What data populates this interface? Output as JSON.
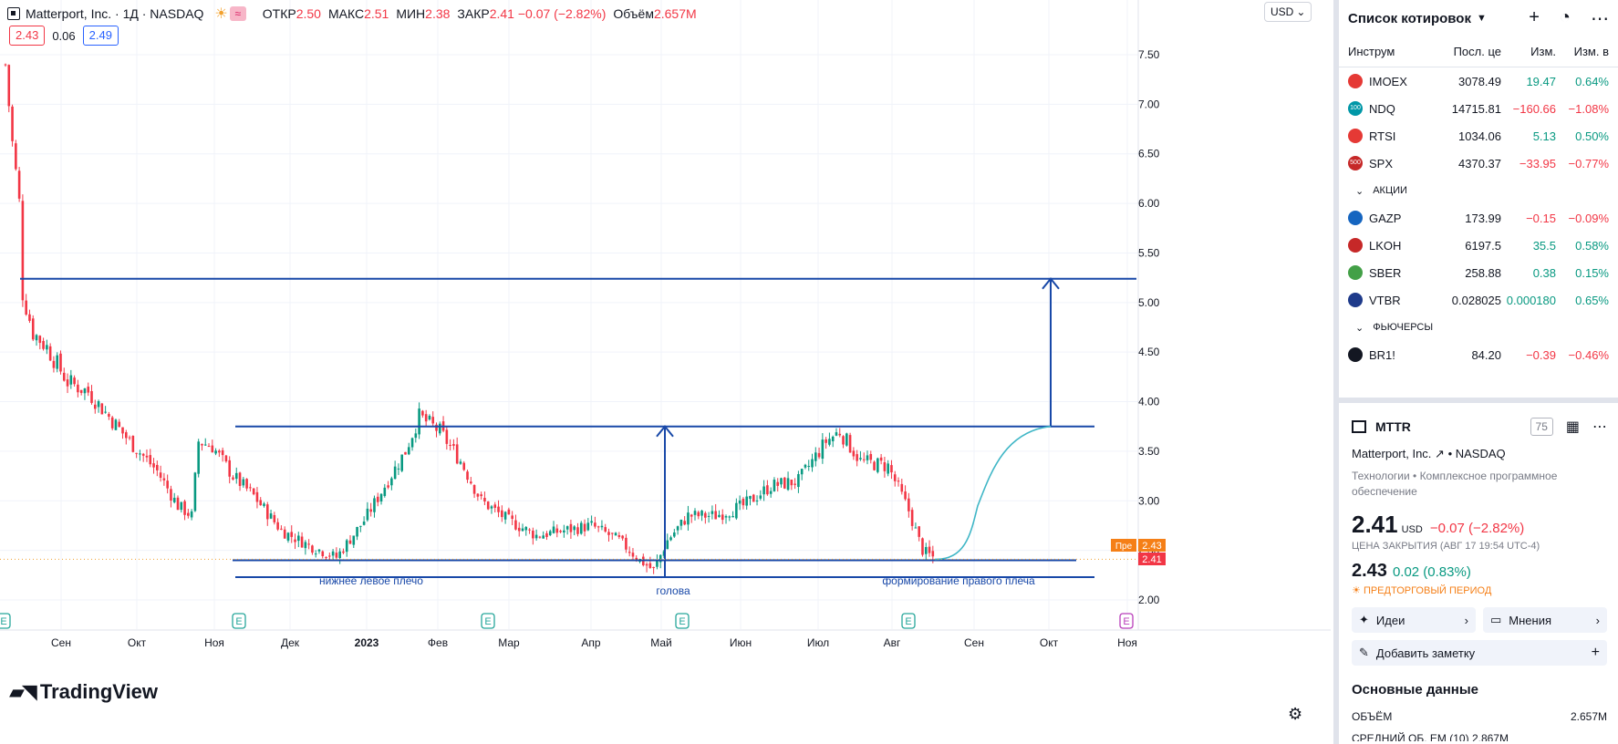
{
  "legend": {
    "title": "Matterport, Inc. · 1Д · NASDAQ",
    "open_label": "ОТКР",
    "open": "2.50",
    "high_label": "МАКС",
    "high": "2.51",
    "low_label": "МИН",
    "low": "2.38",
    "close_label": "ЗАКР",
    "close": "2.41 −0.07 (−2.82%)",
    "volume_label": "Объём",
    "volume": "2.657M"
  },
  "quote": {
    "bid": "2.43",
    "spread": "0.06",
    "ask": "2.49"
  },
  "currency": "USD",
  "logo_text": "TradingView",
  "chart_data": {
    "type": "candlestick",
    "symbol": "MTTR",
    "y_ticks": [
      "7.50",
      "7.00",
      "6.50",
      "6.00",
      "5.50",
      "5.00",
      "4.50",
      "4.00",
      "3.50",
      "3.00",
      "2.50",
      "2.00"
    ],
    "ylim": [
      1.95,
      7.75
    ],
    "x_ticks": [
      "Сен",
      "Окт",
      "Ноя",
      "Дек",
      "2023",
      "Фев",
      "Мар",
      "Апр",
      "Май",
      "Июн",
      "Июл",
      "Авг",
      "Сен",
      "Окт",
      "Ноя"
    ],
    "price_path": [
      [
        0,
        7.4
      ],
      [
        2,
        6.6
      ],
      [
        4,
        6.0
      ],
      [
        5,
        5.1
      ],
      [
        8,
        4.7
      ],
      [
        12,
        4.55
      ],
      [
        18,
        4.2
      ],
      [
        24,
        4.1
      ],
      [
        30,
        3.85
      ],
      [
        36,
        3.6
      ],
      [
        44,
        3.3
      ],
      [
        50,
        2.95
      ],
      [
        54,
        2.85
      ],
      [
        56,
        3.6
      ],
      [
        60,
        3.55
      ],
      [
        66,
        3.25
      ],
      [
        72,
        3.05
      ],
      [
        80,
        2.7
      ],
      [
        88,
        2.55
      ],
      [
        96,
        2.43
      ],
      [
        104,
        2.8
      ],
      [
        110,
        3.15
      ],
      [
        116,
        3.5
      ],
      [
        120,
        3.85
      ],
      [
        126,
        3.7
      ],
      [
        132,
        3.4
      ],
      [
        138,
        3.0
      ],
      [
        146,
        2.8
      ],
      [
        154,
        2.65
      ],
      [
        162,
        2.7
      ],
      [
        170,
        2.75
      ],
      [
        178,
        2.6
      ],
      [
        184,
        2.4
      ],
      [
        188,
        2.3
      ],
      [
        192,
        2.6
      ],
      [
        198,
        2.85
      ],
      [
        206,
        2.85
      ],
      [
        214,
        2.95
      ],
      [
        222,
        3.15
      ],
      [
        230,
        3.2
      ],
      [
        238,
        3.6
      ],
      [
        242,
        3.7
      ],
      [
        248,
        3.4
      ],
      [
        256,
        3.35
      ],
      [
        262,
        2.9
      ],
      [
        266,
        2.5
      ],
      [
        270,
        2.41
      ]
    ],
    "pre_market_price": "2.43",
    "last_price": "2.41",
    "levels": [
      5.24,
      3.75,
      2.4,
      2.23
    ],
    "annotations": [
      "нижнее левое плечо",
      "голова",
      "формирование правого плеча"
    ],
    "pre_label": "Пре"
  },
  "watchlist": {
    "title": "Список котировок",
    "columns": [
      "Инструм",
      "Посл. це",
      "Изм.",
      "Изм. в"
    ],
    "rows": [
      {
        "sym": "IMOEX",
        "last": "3078.49",
        "chg": "19.47",
        "pct": "0.64%",
        "dir": "pos",
        "color": "#e53935",
        "icon": ""
      },
      {
        "sym": "NDQ",
        "last": "14715.81",
        "chg": "−160.66",
        "pct": "−1.08%",
        "dir": "neg",
        "color": "#0097a7",
        "icon": "100"
      },
      {
        "sym": "RTSI",
        "last": "1034.06",
        "chg": "5.13",
        "pct": "0.50%",
        "dir": "pos",
        "color": "#e53935",
        "icon": ""
      },
      {
        "sym": "SPX",
        "last": "4370.37",
        "chg": "−33.95",
        "pct": "−0.77%",
        "dir": "neg",
        "color": "#c62828",
        "icon": "500"
      }
    ],
    "section_stocks": "АКЦИИ",
    "stocks": [
      {
        "sym": "GAZP",
        "last": "173.99",
        "chg": "−0.15",
        "pct": "−0.09%",
        "dir": "neg",
        "color": "#1565c0",
        "icon": ""
      },
      {
        "sym": "LKOH",
        "last": "6197.5",
        "chg": "35.5",
        "pct": "0.58%",
        "dir": "pos",
        "color": "#c62828",
        "icon": ""
      },
      {
        "sym": "SBER",
        "last": "258.88",
        "chg": "0.38",
        "pct": "0.15%",
        "dir": "pos",
        "color": "#43a047",
        "icon": ""
      },
      {
        "sym": "VTBR",
        "last": "0.028025",
        "chg": "0.000180",
        "pct": "0.65%",
        "dir": "pos",
        "color": "#1e3a8a",
        "icon": ""
      }
    ],
    "section_futures": "ФЬЮЧЕРСЫ",
    "futures": [
      {
        "sym": "BR1!",
        "last": "84.20",
        "chg": "−0.39",
        "pct": "−0.46%",
        "dir": "neg",
        "color": "#131722",
        "icon": ""
      }
    ]
  },
  "details": {
    "symbol": "MTTR",
    "badge": "75",
    "company": "Matterport, Inc.",
    "exchange": "NASDAQ",
    "sector": "Технологии • Комплексное программное обеспечение",
    "price": "2.41",
    "currency": "USD",
    "change": "−0.07 (−2.82%)",
    "close_note": "ЦЕНА ЗАКРЫТИЯ  (АВГ 17 19:54 UTC-4)",
    "pre_price": "2.43",
    "pre_change": "0.02 (0.83%)",
    "pre_note": "ПРЕДТОРГОВЫЙ ПЕРИОД",
    "ideas": "Идеи",
    "opinions": "Мнения",
    "add_note": "Добавить заметку",
    "fundamentals_title": "Основные данные",
    "volume_label": "ОБЪЁМ",
    "volume_value": "2.657M",
    "avg_label": "СРЕДНИЙ ОБ. ЕМ (10)",
    "avg_value": "2.867M"
  }
}
